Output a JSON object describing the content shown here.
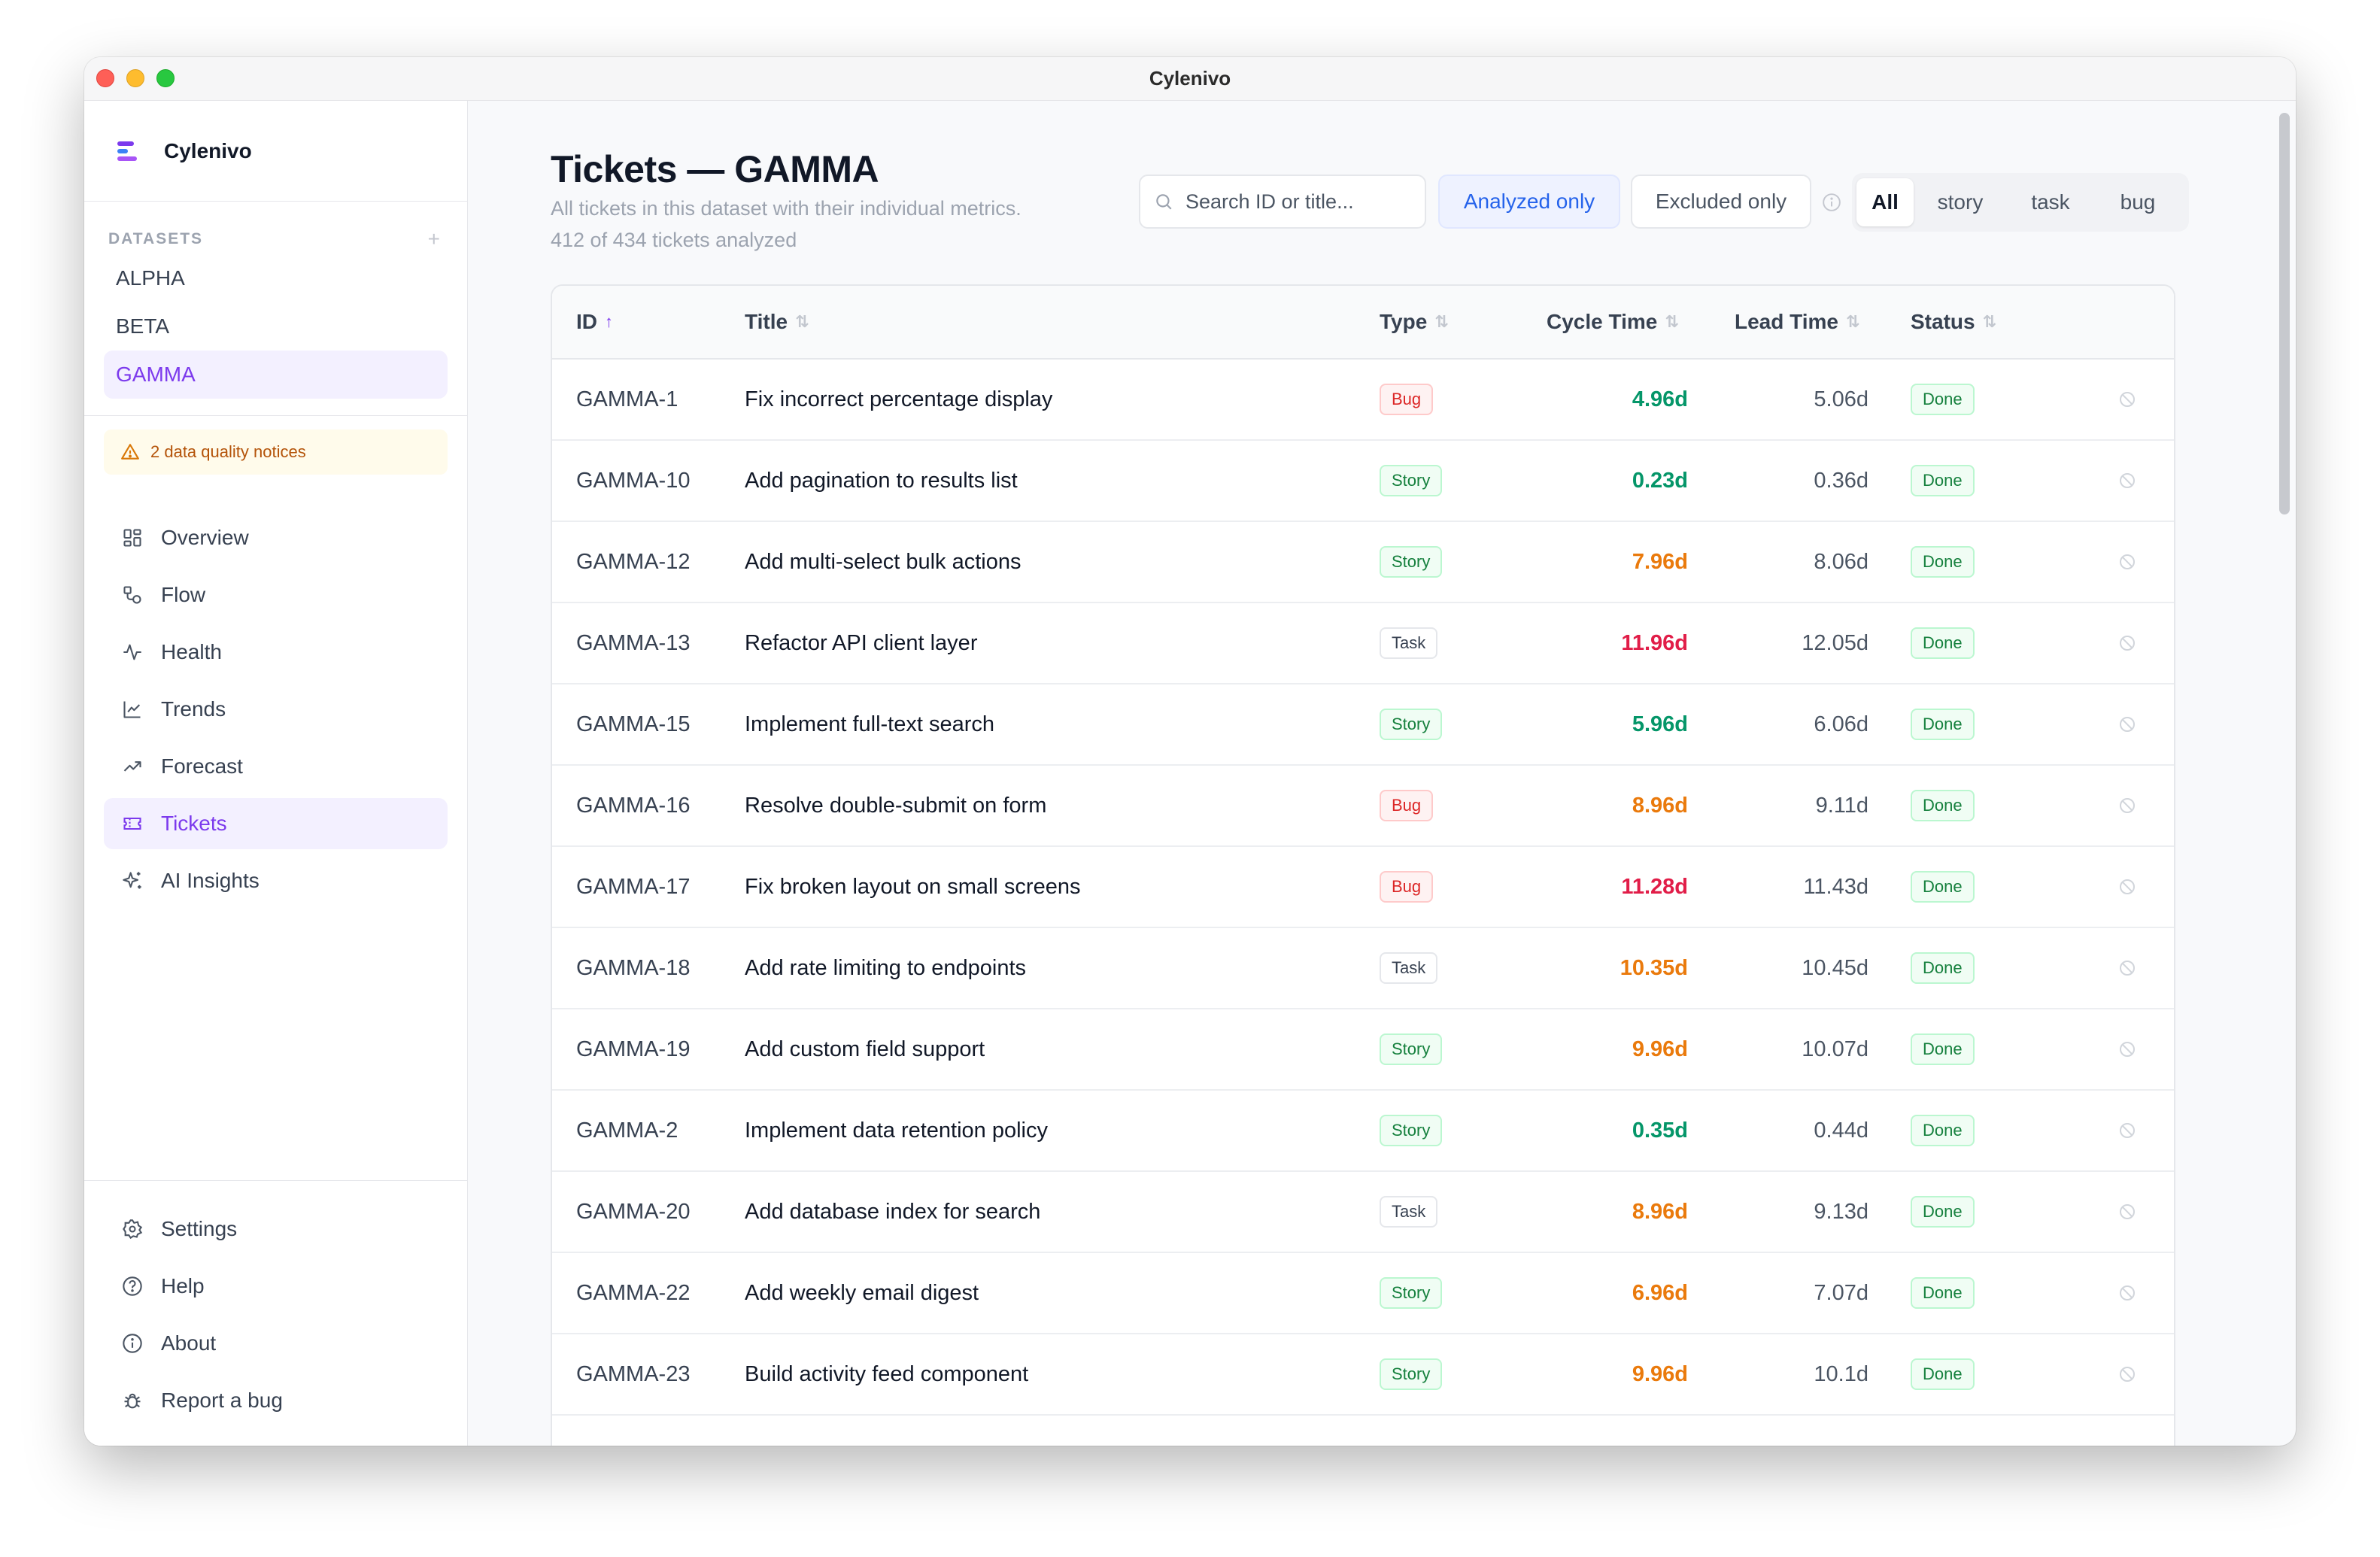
{
  "window": {
    "title": "Cylenivo"
  },
  "sidebar": {
    "brand": "Cylenivo",
    "datasets_title": "DATASETS",
    "datasets_add": "+",
    "datasets": [
      "ALPHA",
      "BETA",
      "GAMMA"
    ],
    "active_dataset": "GAMMA",
    "notice": "2 data quality notices",
    "nav": [
      {
        "label": "Overview",
        "icon": "grid-icon"
      },
      {
        "label": "Flow",
        "icon": "flow-icon"
      },
      {
        "label": "Health",
        "icon": "pulse-icon"
      },
      {
        "label": "Trends",
        "icon": "line-chart-icon"
      },
      {
        "label": "Forecast",
        "icon": "trending-up-icon"
      },
      {
        "label": "Tickets",
        "icon": "ticket-icon"
      },
      {
        "label": "AI Insights",
        "icon": "sparkles-icon"
      }
    ],
    "active_nav": "Tickets",
    "bottom_nav": [
      {
        "label": "Settings",
        "icon": "gear-icon"
      },
      {
        "label": "Help",
        "icon": "help-circle-icon"
      },
      {
        "label": "About",
        "icon": "info-icon"
      },
      {
        "label": "Report a bug",
        "icon": "bug-icon"
      }
    ]
  },
  "page": {
    "title": "Tickets — GAMMA",
    "subtitle": "All tickets in this dataset with their individual metrics.",
    "analyzed_summary": "412 of 434 tickets analyzed"
  },
  "toolbar": {
    "search_placeholder": "Search ID or title...",
    "analyzed_only": "Analyzed only",
    "excluded_only": "Excluded only",
    "type_filters": [
      "All",
      "story",
      "task",
      "bug"
    ],
    "active_type": "All"
  },
  "table": {
    "columns": [
      "ID",
      "Title",
      "Type",
      "Cycle Time",
      "Lead Time",
      "Status"
    ],
    "sort_column": "ID",
    "rows": [
      {
        "id": "GAMMA-1",
        "title": "Fix incorrect percentage display",
        "type": "Bug",
        "cycle": "4.96d",
        "cycle_level": "green",
        "lead": "5.06d",
        "status": "Done"
      },
      {
        "id": "GAMMA-10",
        "title": "Add pagination to results list",
        "type": "Story",
        "cycle": "0.23d",
        "cycle_level": "green",
        "lead": "0.36d",
        "status": "Done"
      },
      {
        "id": "GAMMA-12",
        "title": "Add multi-select bulk actions",
        "type": "Story",
        "cycle": "7.96d",
        "cycle_level": "orange",
        "lead": "8.06d",
        "status": "Done"
      },
      {
        "id": "GAMMA-13",
        "title": "Refactor API client layer",
        "type": "Task",
        "cycle": "11.96d",
        "cycle_level": "red",
        "lead": "12.05d",
        "status": "Done"
      },
      {
        "id": "GAMMA-15",
        "title": "Implement full-text search",
        "type": "Story",
        "cycle": "5.96d",
        "cycle_level": "green",
        "lead": "6.06d",
        "status": "Done"
      },
      {
        "id": "GAMMA-16",
        "title": "Resolve double-submit on form",
        "type": "Bug",
        "cycle": "8.96d",
        "cycle_level": "orange",
        "lead": "9.11d",
        "status": "Done"
      },
      {
        "id": "GAMMA-17",
        "title": "Fix broken layout on small screens",
        "type": "Bug",
        "cycle": "11.28d",
        "cycle_level": "red",
        "lead": "11.43d",
        "status": "Done"
      },
      {
        "id": "GAMMA-18",
        "title": "Add rate limiting to endpoints",
        "type": "Task",
        "cycle": "10.35d",
        "cycle_level": "orange",
        "lead": "10.45d",
        "status": "Done"
      },
      {
        "id": "GAMMA-19",
        "title": "Add custom field support",
        "type": "Story",
        "cycle": "9.96d",
        "cycle_level": "orange",
        "lead": "10.07d",
        "status": "Done"
      },
      {
        "id": "GAMMA-2",
        "title": "Implement data retention policy",
        "type": "Story",
        "cycle": "0.35d",
        "cycle_level": "green",
        "lead": "0.44d",
        "status": "Done"
      },
      {
        "id": "GAMMA-20",
        "title": "Add database index for search",
        "type": "Task",
        "cycle": "8.96d",
        "cycle_level": "orange",
        "lead": "9.13d",
        "status": "Done"
      },
      {
        "id": "GAMMA-22",
        "title": "Add weekly email digest",
        "type": "Story",
        "cycle": "6.96d",
        "cycle_level": "orange",
        "lead": "7.07d",
        "status": "Done"
      },
      {
        "id": "GAMMA-23",
        "title": "Build activity feed component",
        "type": "Story",
        "cycle": "9.96d",
        "cycle_level": "orange",
        "lead": "10.1d",
        "status": "Done"
      }
    ]
  },
  "colors": {
    "accent": "#7c3aed",
    "cycle_green": "#059669",
    "cycle_orange": "#ea7a0c",
    "cycle_red": "#e11d48"
  }
}
